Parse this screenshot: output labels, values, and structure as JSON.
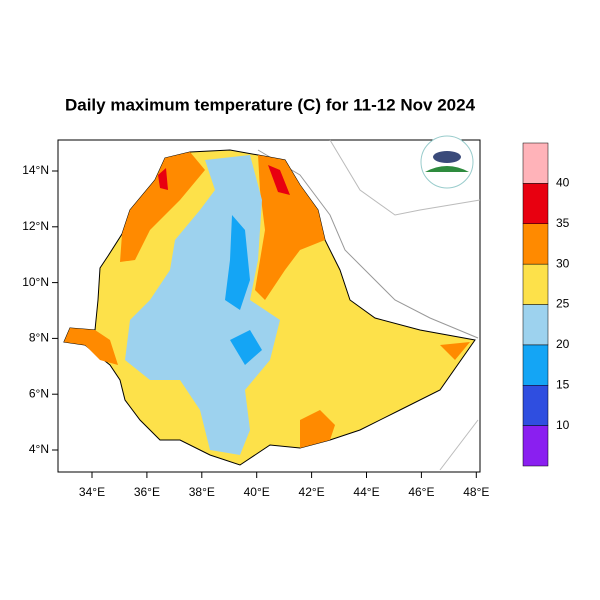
{
  "title": "Daily maximum temperature (C) for 11-12 Nov 2024",
  "map": {
    "x_ticks": [
      "34°E",
      "36°E",
      "38°E",
      "40°E",
      "42°E",
      "44°E",
      "46°E",
      "48°E"
    ],
    "y_ticks": [
      "4°N",
      "6°N",
      "8°N",
      "10°N",
      "12°N",
      "14°N"
    ]
  },
  "colorbar": {
    "labels": [
      "10",
      "15",
      "20",
      "25",
      "30",
      "35",
      "40"
    ],
    "colors": [
      "#8a1ff0",
      "#2f4ee0",
      "#14a5f5",
      "#9dd2ee",
      "#fde14a",
      "#ff8a00",
      "#e80010",
      "#ffb3b9"
    ]
  }
}
